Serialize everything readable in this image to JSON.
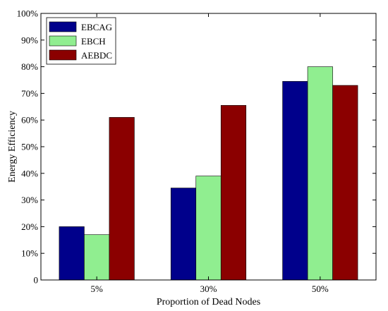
{
  "chart_data": {
    "type": "bar",
    "categories": [
      "5%",
      "30%",
      "50%"
    ],
    "series": [
      {
        "name": "EBCAG",
        "values": [
          20,
          34.5,
          74.5
        ],
        "color": "#00008b"
      },
      {
        "name": "EBCH",
        "values": [
          17,
          39,
          80
        ],
        "color": "#90ee90"
      },
      {
        "name": "AEBDC",
        "values": [
          61,
          65.5,
          73
        ],
        "color": "#8b0000"
      }
    ],
    "title": "",
    "xlabel": "Proportion of Dead Nodes",
    "ylabel": "Energy Efficiency",
    "ylim": [
      0,
      100
    ],
    "yticks": [
      0,
      10,
      20,
      30,
      40,
      50,
      60,
      70,
      80,
      90,
      100
    ],
    "ytick_labels": [
      "0",
      "10%",
      "20%",
      "30%",
      "40%",
      "50%",
      "60%",
      "70%",
      "80%",
      "90%",
      "100%"
    ],
    "grid": false,
    "legend_position": "top-left"
  }
}
